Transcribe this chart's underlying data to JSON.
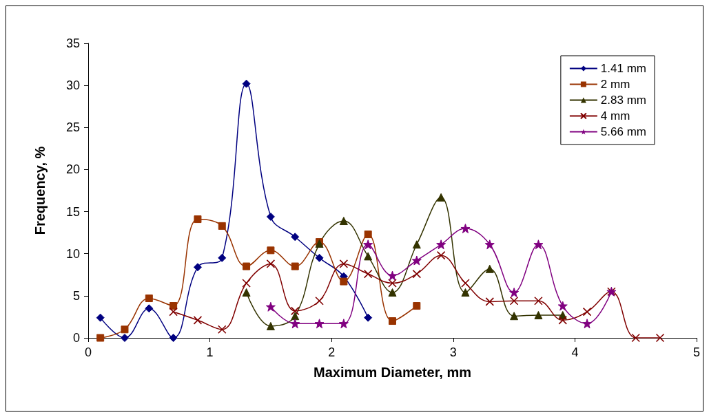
{
  "chart_data": {
    "type": "line",
    "xlabel": "Maximum Diameter, mm",
    "ylabel": "Frequency, %",
    "xlim": [
      0,
      5
    ],
    "xticks": [
      0,
      1,
      2,
      3,
      4,
      5
    ],
    "ylim": [
      0,
      35
    ],
    "yticks": [
      0,
      5,
      10,
      15,
      20,
      25,
      30,
      35
    ],
    "grid": false,
    "legend": "top right",
    "line_style": "solid",
    "series": [
      {
        "name": "1.41 mm",
        "color": "#000080",
        "marker": "diamond",
        "x": [
          0.1,
          0.3,
          0.5,
          0.7,
          0.9,
          1.1,
          1.3,
          1.5,
          1.7,
          1.9,
          2.1,
          2.3
        ],
        "values": [
          2.4,
          0,
          3.5,
          0,
          8.4,
          9.5,
          30.2,
          14.4,
          12,
          9.5,
          7.3,
          2.4
        ]
      },
      {
        "name": "2 mm",
        "color": "#993300",
        "marker": "square",
        "x": [
          0.1,
          0.3,
          0.5,
          0.7,
          0.9,
          1.1,
          1.3,
          1.5,
          1.7,
          1.9,
          2.1,
          2.3,
          2.5,
          2.7
        ],
        "values": [
          0,
          1,
          4.7,
          3.8,
          14.1,
          13.3,
          8.5,
          10.4,
          8.5,
          11.4,
          6.7,
          12.3,
          2,
          3.8
        ]
      },
      {
        "name": "2.83 mm",
        "color": "#333300",
        "marker": "triangle",
        "x": [
          1.3,
          1.5,
          1.7,
          1.9,
          2.1,
          2.3,
          2.5,
          2.7,
          2.9,
          3.1,
          3.3,
          3.5,
          3.7,
          3.9
        ],
        "values": [
          5.4,
          1.4,
          2.6,
          11.2,
          13.9,
          9.7,
          5.4,
          11.1,
          16.7,
          5.4,
          8.2,
          2.6,
          2.7,
          2.7
        ]
      },
      {
        "name": "4 mm",
        "color": "#800000",
        "marker": "cross",
        "x": [
          0.7,
          0.9,
          1.1,
          1.3,
          1.5,
          1.7,
          1.9,
          2.1,
          2.3,
          2.5,
          2.7,
          2.9,
          3.1,
          3.3,
          3.5,
          3.7,
          3.9,
          4.1,
          4.3,
          4.5,
          4.7
        ],
        "values": [
          3.1,
          2.1,
          1,
          6.5,
          8.8,
          3.2,
          4.4,
          8.8,
          7.6,
          6.5,
          7.6,
          9.8,
          6.5,
          4.3,
          4.4,
          4.4,
          2.1,
          3.1,
          5.5,
          0,
          0
        ]
      },
      {
        "name": "5.66 mm",
        "color": "#800080",
        "marker": "star",
        "x": [
          1.5,
          1.7,
          1.9,
          2.1,
          2.3,
          2.5,
          2.7,
          2.9,
          3.1,
          3.3,
          3.5,
          3.7,
          3.9,
          4.1,
          4.3
        ],
        "values": [
          3.7,
          1.7,
          1.7,
          1.7,
          11.1,
          7.4,
          9.2,
          11.1,
          13,
          11.1,
          5.4,
          11.1,
          3.8,
          1.7,
          5.5
        ]
      }
    ]
  }
}
